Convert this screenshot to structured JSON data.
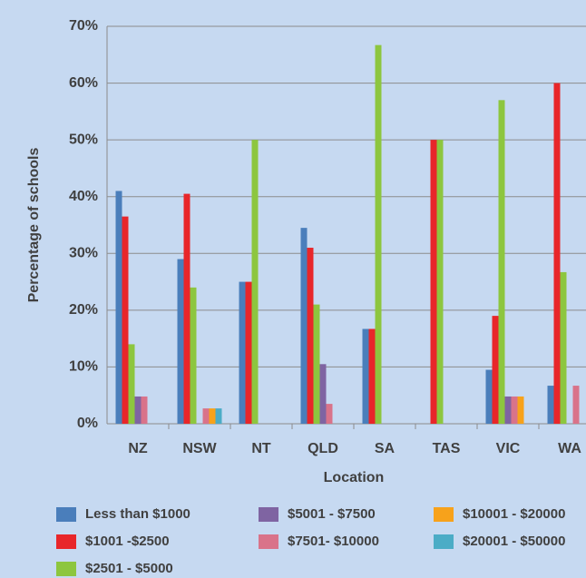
{
  "chart_data": {
    "type": "bar",
    "x_label": "Location",
    "y_label": "Percentage of schools",
    "categories": [
      "NZ",
      "NSW",
      "NT",
      "QLD",
      "SA",
      "TAS",
      "VIC",
      "WA"
    ],
    "series": [
      {
        "name": "Less than $1000",
        "color": "#4a7ebb",
        "values": [
          41,
          29,
          25,
          34.5,
          16.7,
          0,
          9.5,
          6.7
        ]
      },
      {
        "name": "$1001 -$2500",
        "color": "#e8262a",
        "values": [
          36.5,
          40.5,
          25,
          31,
          16.7,
          50,
          19,
          60
        ]
      },
      {
        "name": "$2501 - $5000",
        "color": "#8dc63f",
        "values": [
          14,
          24,
          50,
          21,
          66.7,
          50,
          57,
          26.7
        ]
      },
      {
        "name": "$5001 - $7500",
        "color": "#7f64a2",
        "values": [
          4.8,
          0,
          0,
          10.5,
          0,
          0,
          4.8,
          0
        ]
      },
      {
        "name": "$7501- $10000",
        "color": "#d9738a",
        "values": [
          4.8,
          2.7,
          0,
          3.5,
          0,
          0,
          4.8,
          6.7
        ]
      },
      {
        "name": "$10001 - $20000",
        "color": "#f7a21b",
        "values": [
          0,
          2.7,
          0,
          0,
          0,
          0,
          4.8,
          0
        ]
      },
      {
        "name": "$20001 - $50000",
        "color": "#4bacc6",
        "values": [
          0,
          2.7,
          0,
          0,
          0,
          0,
          0,
          0
        ]
      }
    ],
    "ylim": [
      0,
      70
    ],
    "yticks": [
      {
        "value": 0,
        "label": "0%"
      },
      {
        "value": 10,
        "label": "10%"
      },
      {
        "value": 20,
        "label": "20%"
      },
      {
        "value": 30,
        "label": "30%"
      },
      {
        "value": 40,
        "label": "40%"
      },
      {
        "value": 50,
        "label": "50%"
      },
      {
        "value": 60,
        "label": "60%"
      },
      {
        "value": 70,
        "label": "70%"
      }
    ],
    "grid": true
  }
}
